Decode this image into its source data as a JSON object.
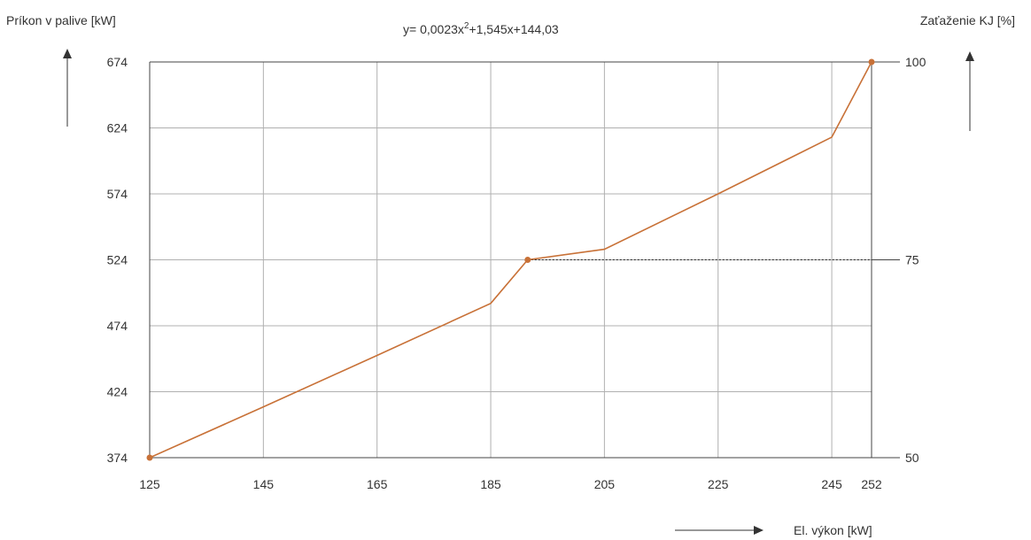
{
  "chart_data": {
    "type": "line",
    "title": "y= 0,0023x²+1,545x+144,03",
    "equation": {
      "prefix": "y= 0,0023x",
      "exponent": "2",
      "suffix": "+1,545x+144,03"
    },
    "ylabel": "Príkon v palive  [kW]",
    "y2label": "Zaťaženie KJ [%]",
    "xlabel": "El. výkon [kW]",
    "xlim": [
      125,
      252
    ],
    "ylim": [
      374,
      674
    ],
    "x_ticks": [
      "125",
      "145",
      "165",
      "185",
      "205",
      "225",
      "245",
      "252"
    ],
    "y_ticks": [
      "374",
      "424",
      "474",
      "524",
      "574",
      "624",
      "674"
    ],
    "y2_ticks": [
      {
        "y": 374,
        "label": "50"
      },
      {
        "y": 524,
        "label": "75"
      },
      {
        "y": 674,
        "label": "100"
      }
    ],
    "series": [
      {
        "color": "#c87137",
        "x": [
          125,
          145,
          165,
          185,
          191.5,
          205,
          225,
          245,
          252
        ],
        "y": [
          374,
          412.5,
          451.5,
          491,
          524,
          532,
          574,
          617,
          674
        ]
      }
    ],
    "markers": [
      {
        "x": 125,
        "y": 374
      },
      {
        "x": 191.5,
        "y": 524
      },
      {
        "x": 252,
        "y": 674
      }
    ],
    "reference_line": {
      "from_x": 191.5,
      "to_x": 252,
      "y": 524,
      "style": "dotted"
    },
    "grid": true,
    "colors": {
      "line": "#c87137",
      "grid": "#b0b0b0",
      "axis": "#444444"
    }
  }
}
